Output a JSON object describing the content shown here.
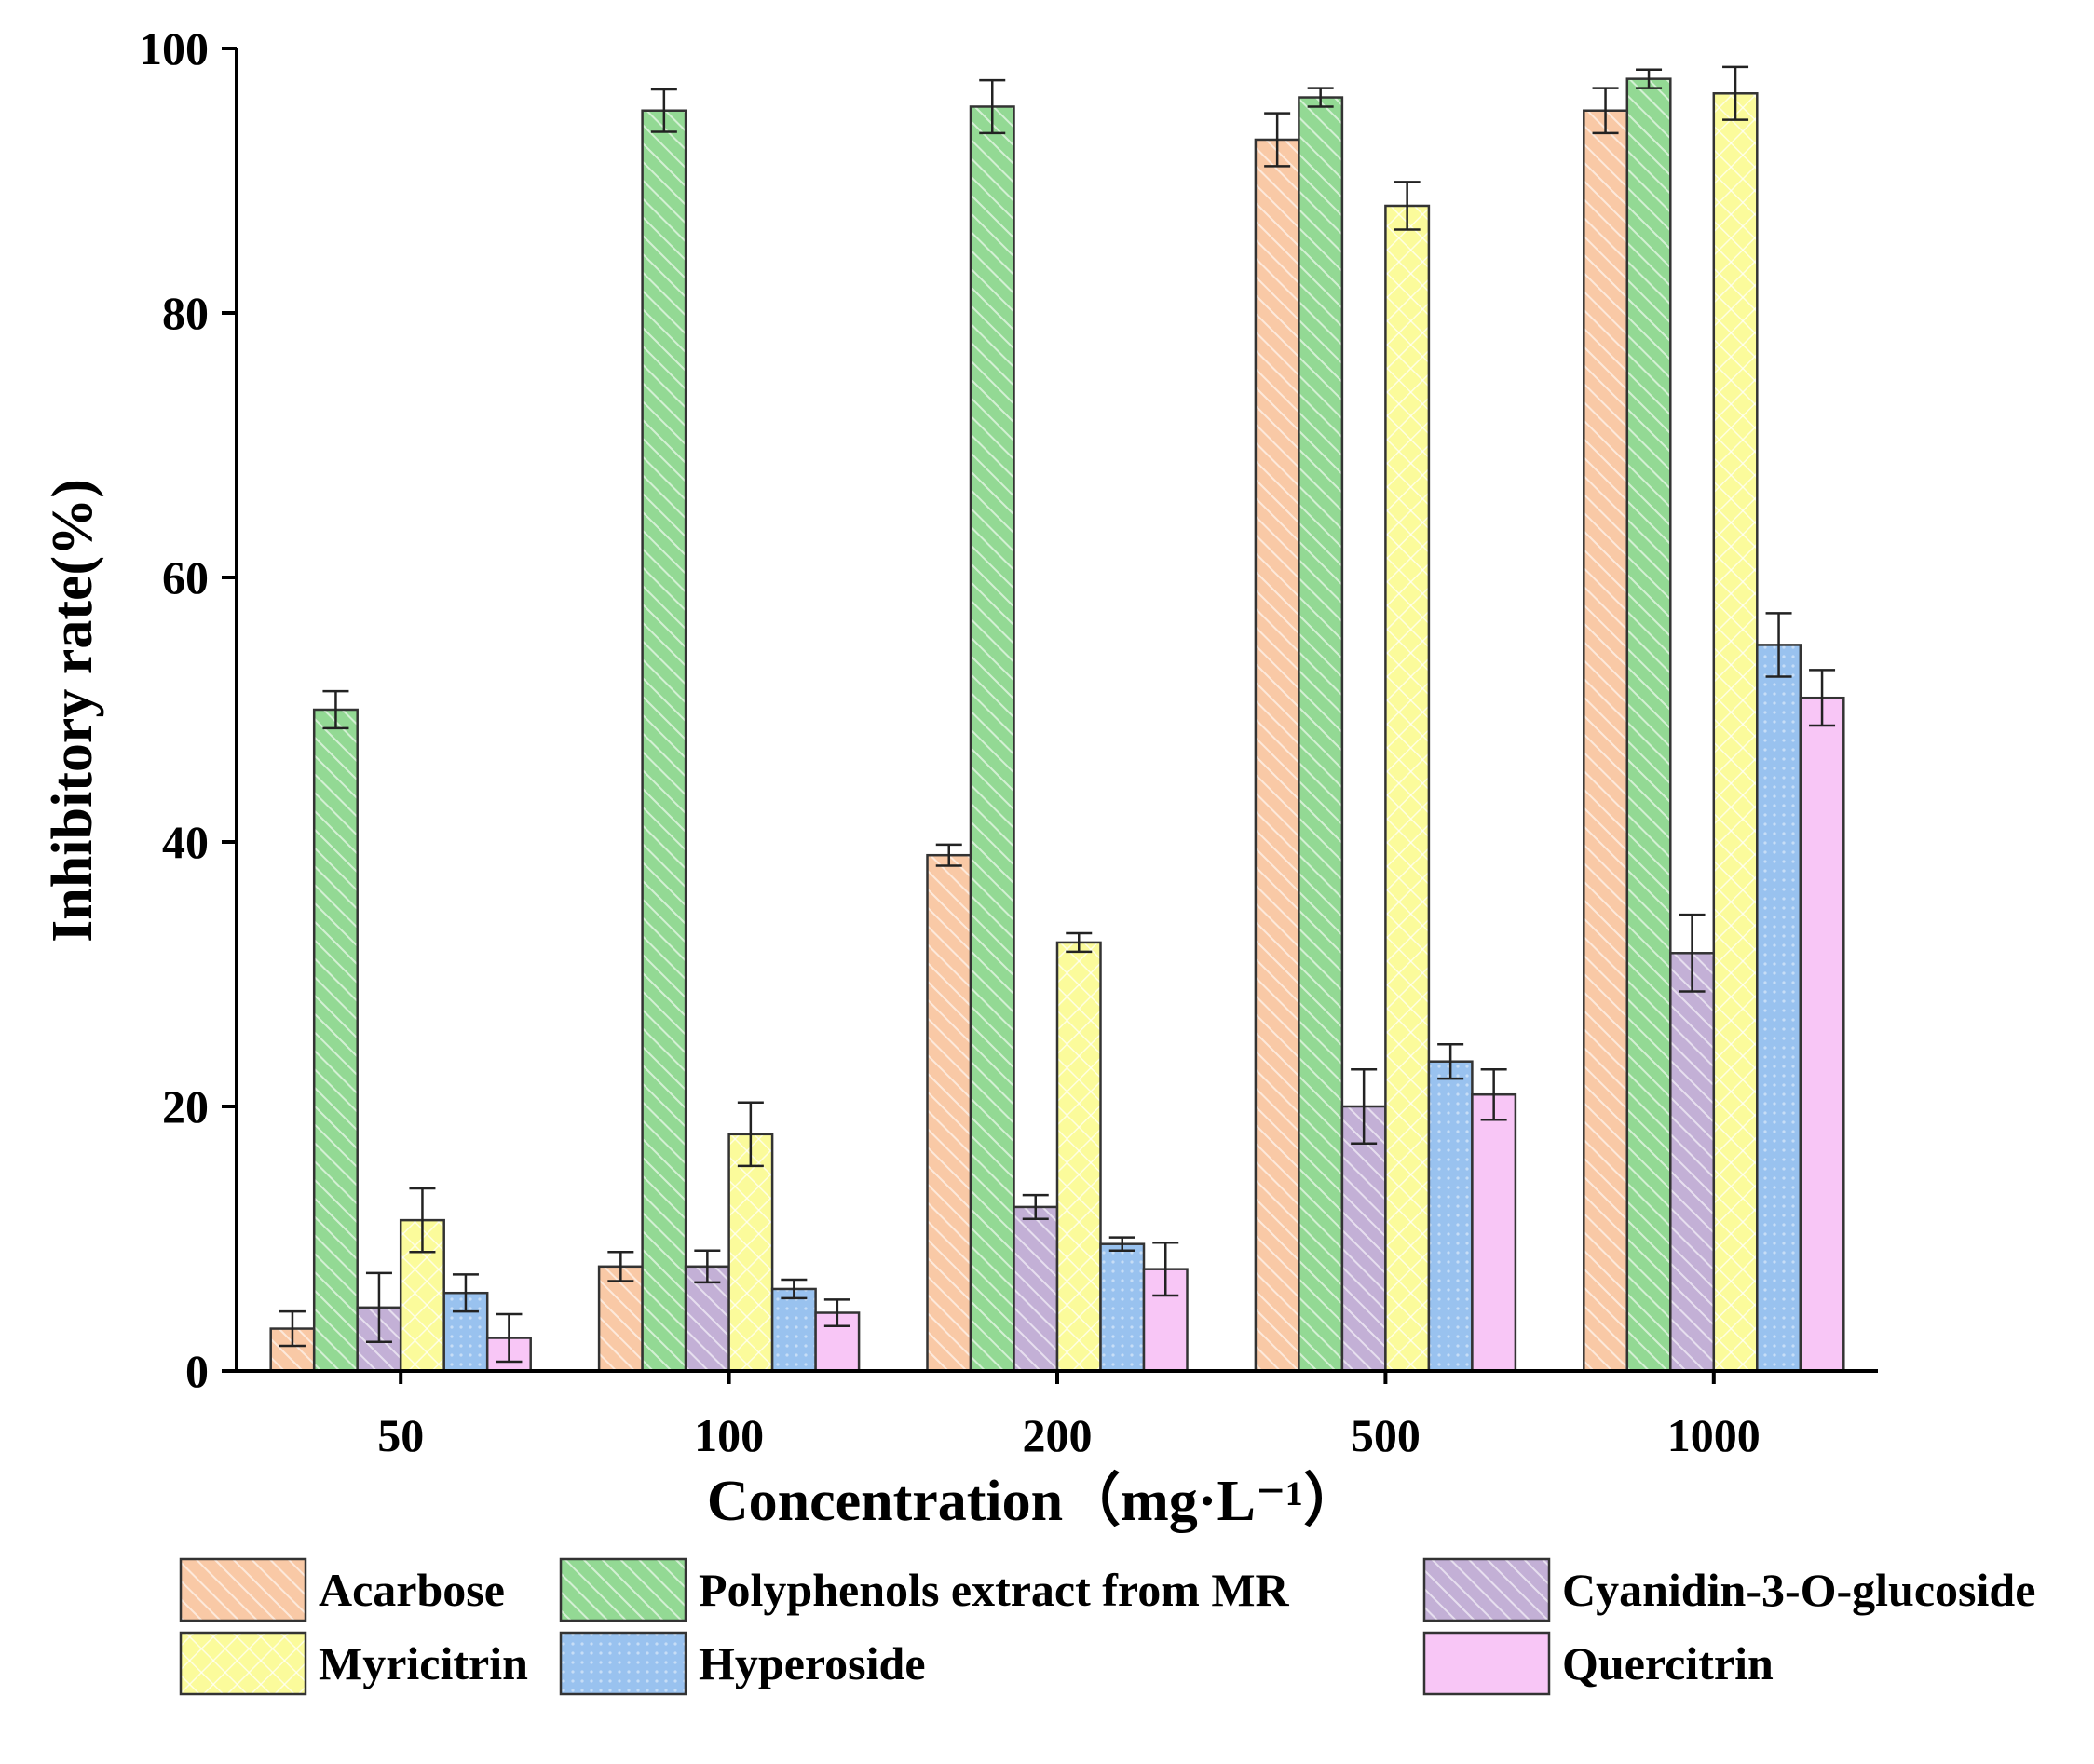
{
  "chart_data": {
    "type": "bar",
    "title": "",
    "xlabel": "Concentration（mg·L⁻¹）",
    "ylabel": "Inhibitory rate(%)",
    "ylim": [
      0,
      100
    ],
    "yticks": [
      "0",
      "20",
      "40",
      "60",
      "80",
      "100"
    ],
    "categories": [
      "50",
      "100",
      "200",
      "500",
      "1000"
    ],
    "legend_position": "bottom",
    "series": [
      {
        "name": "Acarbose",
        "color": "#f9c9a6",
        "pattern": "diagonal",
        "values": [
          3.2,
          7.9,
          39.0,
          93.1,
          95.3
        ],
        "errors": [
          1.3,
          1.1,
          0.8,
          2.0,
          1.7
        ]
      },
      {
        "name": "Polyphenols extract from MR",
        "color": "#93d994",
        "pattern": "diagonal",
        "values": [
          50.0,
          95.3,
          95.6,
          96.3,
          97.7
        ],
        "errors": [
          1.4,
          1.6,
          2.0,
          0.7,
          0.7
        ]
      },
      {
        "name": "Cyanidin-3-O-glucoside",
        "color": "#c3b0d6",
        "pattern": "diagonal",
        "values": [
          4.8,
          7.9,
          12.4,
          20.0,
          31.6
        ],
        "errors": [
          2.6,
          1.2,
          0.9,
          2.8,
          2.9
        ]
      },
      {
        "name": "Myricitrin",
        "color": "#fbfb9b",
        "pattern": "crosshatch",
        "values": [
          11.4,
          17.9,
          32.4,
          88.1,
          96.6
        ],
        "errors": [
          2.4,
          2.4,
          0.7,
          1.8,
          2.0
        ]
      },
      {
        "name": "Hyperoside",
        "color": "#99c2ef",
        "pattern": "dots",
        "values": [
          5.9,
          6.2,
          9.6,
          23.4,
          54.9
        ],
        "errors": [
          1.4,
          0.7,
          0.5,
          1.3,
          2.4
        ]
      },
      {
        "name": "Quercitrin",
        "color": "#f8c6f6",
        "pattern": "none",
        "values": [
          2.5,
          4.4,
          7.7,
          20.9,
          50.9
        ],
        "errors": [
          1.8,
          1.0,
          2.0,
          1.9,
          2.1
        ]
      }
    ]
  }
}
